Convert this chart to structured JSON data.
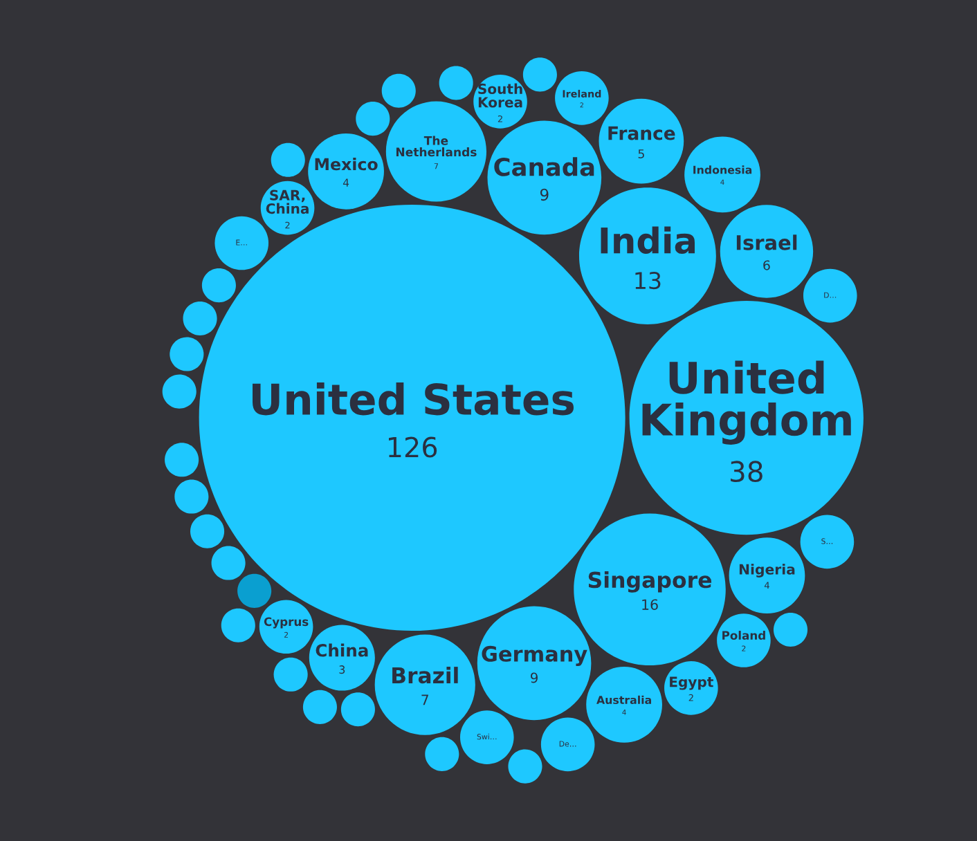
{
  "chart_data": {
    "type": "other",
    "data_labels": true,
    "categories": [
      "United States",
      "United Kingdom",
      "Singapore",
      "India",
      "Germany",
      "Canada",
      "Brazil",
      "The Netherlands",
      "Israel",
      "France",
      "Mexico",
      "Nigeria",
      "Indonesia",
      "Australia",
      "China",
      "South Korea",
      "SAR, China",
      "Ireland",
      "Poland",
      "Cyprus",
      "Egypt",
      "Swi…",
      "D…",
      "S…",
      "De…",
      "E…",
      null,
      null,
      null,
      null,
      null,
      null,
      null,
      null,
      null,
      null,
      null,
      null,
      null,
      null,
      null,
      null,
      null,
      null,
      null,
      null,
      null
    ],
    "values": [
      126,
      38,
      16,
      13,
      9,
      9,
      7,
      7,
      6,
      5,
      4,
      4,
      4,
      4,
      3,
      2,
      2,
      2,
      2,
      2,
      2,
      null,
      null,
      null,
      null,
      null,
      null,
      null,
      null,
      null,
      null,
      null,
      null,
      null,
      null,
      null,
      null,
      null,
      null,
      null,
      null,
      null,
      null,
      null,
      null,
      null,
      null
    ],
    "colors": [
      "#1ec8ff",
      "#1ec8ff",
      "#1ec8ff",
      "#1ec8ff",
      "#1ec8ff",
      "#1ec8ff",
      "#1ec8ff",
      "#1ec8ff",
      "#1ec8ff",
      "#1ec8ff",
      "#1ec8ff",
      "#1ec8ff",
      "#1ec8ff",
      "#1ec8ff",
      "#1ec8ff",
      "#1ec8ff",
      "#1ec8ff",
      "#1ec8ff",
      "#1ec8ff",
      "#1ec8ff",
      "#1ec8ff",
      "#1ec8ff",
      "#1ec8ff",
      "#1ec8ff",
      "#1ec8ff",
      "#1ec8ff",
      "#0a9fd0",
      "#1ec8ff",
      "#1ec8ff",
      "#1ec8ff",
      "#1ec8ff",
      "#1ec8ff",
      "#1ec8ff",
      "#1ec8ff",
      "#1ec8ff",
      "#1ec8ff",
      "#1ec8ff",
      "#1ec8ff",
      "#1ec8ff",
      "#1ec8ff",
      "#1ec8ff",
      "#1ec8ff",
      "#1ec8ff",
      "#1ec8ff",
      "#1ec8ff",
      "#1ec8ff",
      "#1ec8ff"
    ]
  }
}
